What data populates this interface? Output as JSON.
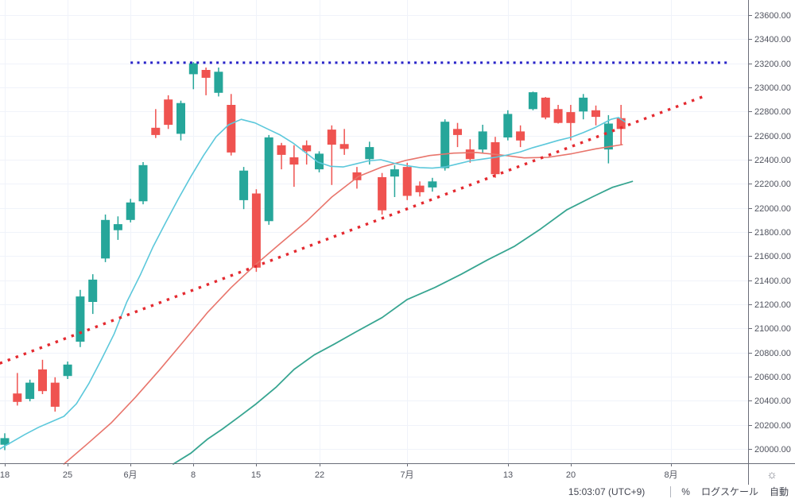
{
  "colors": {
    "bull": "#26a69a",
    "bear": "#ef5350",
    "grid": "#f0f3fa",
    "axis_border": "#6a6d78",
    "tick_label": "#50535e",
    "resistance_blue": "#2823c8",
    "trendline_red": "#e42a30",
    "ma_fast_cyan": "#5cc8db",
    "ma_mid_red": "#e8756c",
    "ma_slow_teal": "#37a591"
  },
  "toolbar": {
    "timestamp": "15:03:07 (UTC+9)",
    "percent_label": "%",
    "log_label": "ログスケール",
    "auto_label": "自動"
  },
  "icons": {
    "gear": "☼"
  },
  "chart_data": {
    "type": "candlestick",
    "title": "",
    "xlabel": "",
    "ylabel": "",
    "grid": true,
    "ylim": [
      19880,
      23725
    ],
    "y_tick_step": 200,
    "y_tick_labels": [
      "23600.00",
      "23400.00",
      "23200.00",
      "23000.00",
      "22800.00",
      "22600.00",
      "22400.00",
      "22200.00",
      "22000.00",
      "21800.00",
      "21600.00",
      "21400.00",
      "21200.00",
      "21000.00",
      "20800.00",
      "20600.00",
      "20400.00",
      "20200.00",
      "20000.00"
    ],
    "x_ticks": [
      {
        "label": "18",
        "i": 0
      },
      {
        "label": "25",
        "i": 5
      },
      {
        "label": "6月",
        "i": 10
      },
      {
        "label": "8",
        "i": 15
      },
      {
        "label": "15",
        "i": 20
      },
      {
        "label": "22",
        "i": 25
      },
      {
        "label": "7月",
        "i": 32
      },
      {
        "label": "13",
        "i": 40
      },
      {
        "label": "20",
        "i": 45
      },
      {
        "label": "8月",
        "i": 53
      }
    ],
    "candles": {
      "format": [
        "open",
        "high",
        "low",
        "close"
      ],
      "ohlc": [
        [
          20035,
          20130,
          19990,
          20090
        ],
        [
          20460,
          20630,
          20360,
          20390
        ],
        [
          20415,
          20575,
          20395,
          20550
        ],
        [
          20660,
          20740,
          20455,
          20480
        ],
        [
          20550,
          20595,
          20310,
          20350
        ],
        [
          20605,
          20725,
          20580,
          20700
        ],
        [
          20890,
          21320,
          20845,
          21265
        ],
        [
          21220,
          21450,
          21120,
          21405
        ],
        [
          21580,
          21945,
          21550,
          21900
        ],
        [
          21815,
          21930,
          21735,
          21865
        ],
        [
          21900,
          22075,
          21880,
          22045
        ],
        [
          22055,
          22380,
          22030,
          22355
        ],
        [
          22665,
          22820,
          22580,
          22605
        ],
        [
          22900,
          22935,
          22655,
          22690
        ],
        [
          22615,
          22890,
          22560,
          22870
        ],
        [
          23110,
          23210,
          22985,
          23200
        ],
        [
          23145,
          23165,
          22935,
          23080
        ],
        [
          22955,
          23165,
          22925,
          23130
        ],
        [
          22855,
          22945,
          22435,
          22460
        ],
        [
          22065,
          22340,
          21990,
          22310
        ],
        [
          22120,
          22155,
          21470,
          21505
        ],
        [
          21890,
          22605,
          21860,
          22585
        ],
        [
          22520,
          22540,
          22320,
          22440
        ],
        [
          22420,
          22520,
          22175,
          22360
        ],
        [
          22520,
          22560,
          22360,
          22470
        ],
        [
          22320,
          22470,
          22295,
          22450
        ],
        [
          22650,
          22685,
          22190,
          22525
        ],
        [
          22530,
          22655,
          22440,
          22490
        ],
        [
          22295,
          22340,
          22160,
          22230
        ],
        [
          22405,
          22550,
          22360,
          22505
        ],
        [
          22255,
          22290,
          21945,
          21980
        ],
        [
          22260,
          22355,
          22090,
          22320
        ],
        [
          22340,
          22375,
          22065,
          22100
        ],
        [
          22185,
          22220,
          22095,
          22130
        ],
        [
          22170,
          22250,
          22135,
          22220
        ],
        [
          22330,
          22735,
          22310,
          22715
        ],
        [
          22655,
          22705,
          22505,
          22605
        ],
        [
          22485,
          22570,
          22375,
          22405
        ],
        [
          22485,
          22690,
          22450,
          22635
        ],
        [
          22545,
          22590,
          22250,
          22280
        ],
        [
          22585,
          22810,
          22560,
          22780
        ],
        [
          22635,
          22685,
          22505,
          22560
        ],
        [
          22820,
          22965,
          22810,
          22960
        ],
        [
          22915,
          22920,
          22735,
          22750
        ],
        [
          22820,
          22855,
          22700,
          22705
        ],
        [
          22795,
          22855,
          22560,
          22705
        ],
        [
          22800,
          22945,
          22735,
          22915
        ],
        [
          22810,
          22850,
          22685,
          22755
        ],
        [
          22485,
          22770,
          22370,
          22700
        ],
        [
          22745,
          22855,
          22520,
          22655
        ]
      ]
    },
    "ma_lines": [
      {
        "name": "ma-slow-teal-line",
        "color": "#37a591",
        "width": 1.8,
        "points": [
          [
            13.4,
            19875
          ],
          [
            14.8,
            19965
          ],
          [
            16.1,
            20080
          ],
          [
            17.3,
            20165
          ],
          [
            18.6,
            20265
          ],
          [
            20,
            20375
          ],
          [
            21.6,
            20515
          ],
          [
            23,
            20660
          ],
          [
            24.6,
            20780
          ],
          [
            26.2,
            20870
          ],
          [
            27.9,
            20970
          ],
          [
            30,
            21090
          ],
          [
            32,
            21240
          ],
          [
            34.2,
            21340
          ],
          [
            36.3,
            21450
          ],
          [
            38.4,
            21570
          ],
          [
            40.5,
            21680
          ],
          [
            42.6,
            21825
          ],
          [
            44.7,
            21985
          ],
          [
            46.7,
            22090
          ],
          [
            48.3,
            22170
          ],
          [
            49.9,
            22220
          ]
        ]
      },
      {
        "name": "ma-mid-red-line",
        "color": "#e8756c",
        "width": 1.6,
        "points": [
          [
            4.7,
            19875
          ],
          [
            6.6,
            20045
          ],
          [
            8.5,
            20220
          ],
          [
            10.4,
            20430
          ],
          [
            12.3,
            20655
          ],
          [
            14.2,
            20890
          ],
          [
            16.1,
            21130
          ],
          [
            18,
            21340
          ],
          [
            19.9,
            21525
          ],
          [
            21.8,
            21695
          ],
          [
            24,
            21890
          ],
          [
            26,
            22090
          ],
          [
            28.1,
            22260
          ],
          [
            30,
            22340
          ],
          [
            31.9,
            22395
          ],
          [
            33.8,
            22435
          ],
          [
            35.7,
            22455
          ],
          [
            37.5,
            22460
          ],
          [
            39.4,
            22440
          ],
          [
            41.3,
            22415
          ],
          [
            43.2,
            22420
          ],
          [
            45.1,
            22450
          ],
          [
            47,
            22490
          ],
          [
            49.1,
            22525
          ]
        ]
      },
      {
        "name": "ma-fast-cyan-line",
        "color": "#5cc8db",
        "width": 1.6,
        "points": [
          [
            -0.4,
            20000
          ],
          [
            0.6,
            20060
          ],
          [
            1.6,
            20120
          ],
          [
            2.7,
            20180
          ],
          [
            3.7,
            20225
          ],
          [
            4.7,
            20270
          ],
          [
            5.7,
            20375
          ],
          [
            6.7,
            20545
          ],
          [
            7.7,
            20745
          ],
          [
            8.7,
            20955
          ],
          [
            9.7,
            21220
          ],
          [
            10.8,
            21450
          ],
          [
            11.8,
            21680
          ],
          [
            12.8,
            21880
          ],
          [
            13.8,
            22075
          ],
          [
            14.8,
            22260
          ],
          [
            15.8,
            22435
          ],
          [
            16.8,
            22590
          ],
          [
            17.8,
            22690
          ],
          [
            18.8,
            22735
          ],
          [
            19.9,
            22705
          ],
          [
            20.9,
            22655
          ],
          [
            21.9,
            22605
          ],
          [
            22.9,
            22540
          ],
          [
            23.9,
            22460
          ],
          [
            24.9,
            22380
          ],
          [
            25.9,
            22345
          ],
          [
            26.9,
            22340
          ],
          [
            27.9,
            22365
          ],
          [
            28.9,
            22390
          ],
          [
            29.9,
            22400
          ],
          [
            31,
            22370
          ],
          [
            32,
            22350
          ],
          [
            33,
            22335
          ],
          [
            34,
            22330
          ],
          [
            35,
            22340
          ],
          [
            36,
            22365
          ],
          [
            37,
            22390
          ],
          [
            38,
            22405
          ],
          [
            39,
            22420
          ],
          [
            40,
            22440
          ],
          [
            41,
            22465
          ],
          [
            42,
            22500
          ],
          [
            43,
            22530
          ],
          [
            44,
            22560
          ],
          [
            45,
            22585
          ],
          [
            46,
            22625
          ],
          [
            47,
            22670
          ],
          [
            48.2,
            22735
          ],
          [
            48.8,
            22750
          ],
          [
            49.3,
            22715
          ]
        ]
      }
    ],
    "trendlines": [
      {
        "name": "resistance-dotted-line",
        "style": "dotted",
        "color": "#2823c8",
        "p1": [
          10.0,
          23205
        ],
        "p2": [
          57.7,
          23205
        ]
      },
      {
        "name": "ascending-trendline-dotted",
        "style": "dotted",
        "color": "#e42a30",
        "p1": [
          -0.4,
          20710
        ],
        "p2": [
          55.8,
          22935
        ]
      }
    ]
  }
}
